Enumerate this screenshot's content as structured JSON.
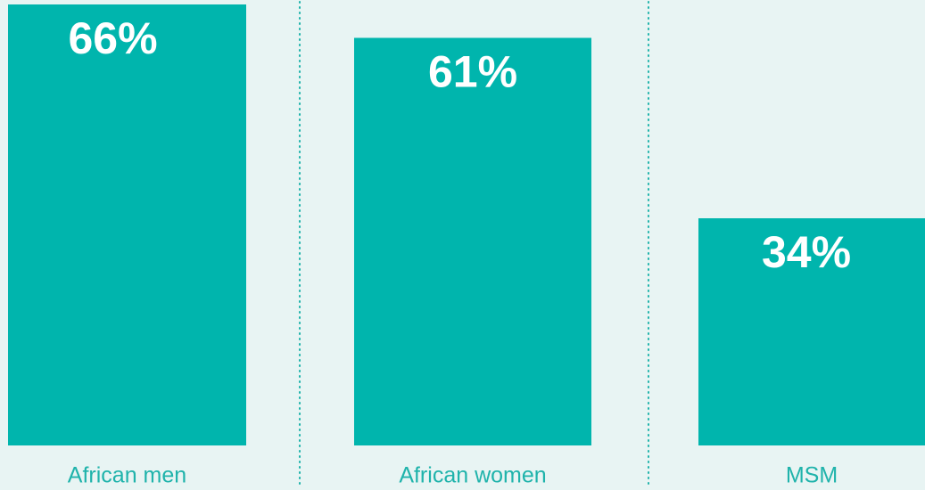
{
  "chart_data": {
    "type": "bar",
    "categories": [
      "African men",
      "African women",
      "MSM"
    ],
    "values": [
      66,
      61,
      34
    ],
    "value_labels": [
      "66%",
      "61%",
      "34%"
    ],
    "color": "#00b5ad"
  }
}
